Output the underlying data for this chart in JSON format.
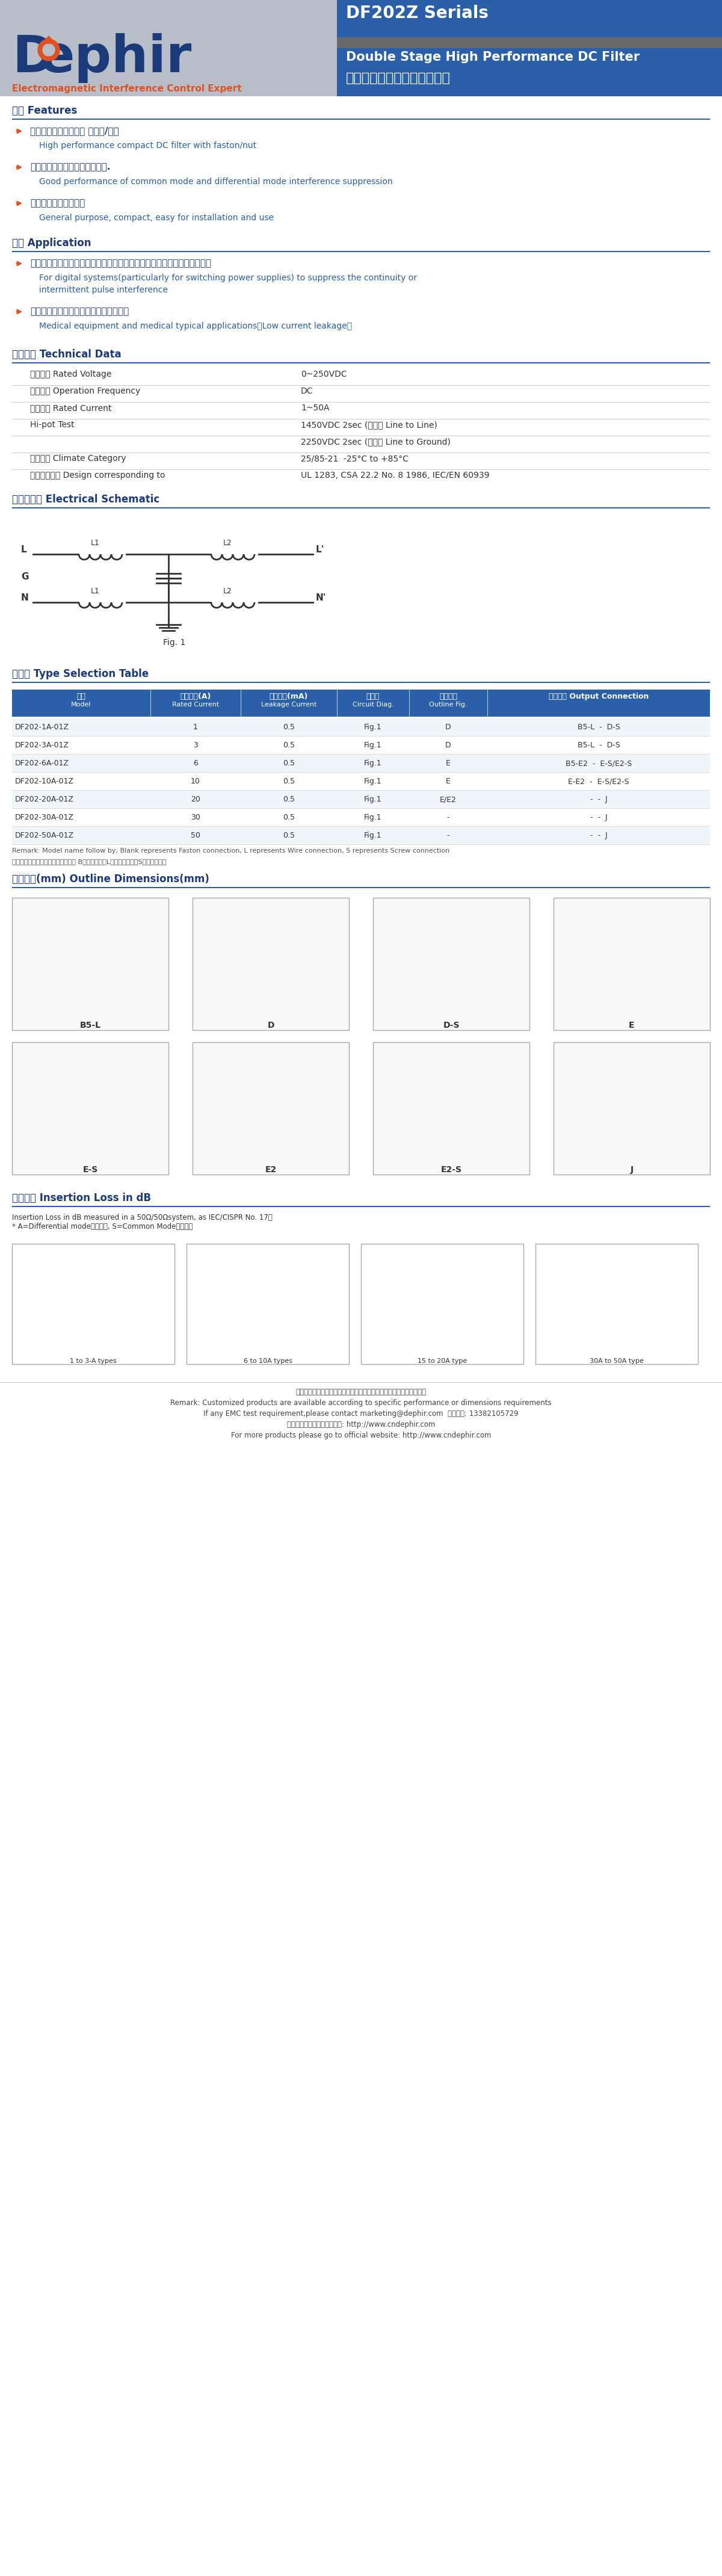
{
  "title_series": "DF202Z Serials",
  "title_product_en": "Double Stage High Performance DC Filter",
  "title_product_cn": "双级高性能型直流电源滤波器",
  "brand": "Dephir",
  "brand_sub": "Electromagnetic Interference Control Expert",
  "header_bg_color": "#3060a0",
  "header_gray_color": "#808080",
  "logo_blue": "#1a3a7a",
  "logo_orange": "#e05020",
  "logo_bg": "#c8c8c8",
  "section_line_color": "#2050a0",
  "features_title": "特点 Features",
  "features": [
    {
      "cn": "高性能双极直流滤波器 嵌入式/螺母",
      "en": "High performance compact DC filter with faston/nut"
    },
    {
      "cn": "良好的共模和差模干扰抑制特性.",
      "en": "Good performance of common mode and differential mode interference suppression"
    },
    {
      "cn": "通用、小巧、方便安装",
      "en": "General purpose, compact, easy for installation and use"
    }
  ],
  "application_title": "应用 Application",
  "applications": [
    {
      "cn": "用于大多数数字设备（尤其是开关电源）可用来抑制连续或间歇性脉冲干扰",
      "en": "For digital systems(particularly for switching power supplies) to suppress the continuity or\nintermittent pulse interference"
    },
    {
      "cn": "医疗设备及医疗特别应用（低泄漏电流）",
      "en": "Medical equipment and medical typical applications（Low current leakage）"
    }
  ],
  "tech_title": "技术参数 Technical Data",
  "tech_data": [
    [
      "额定电压 Rated Voltage",
      "0~250VDC"
    ],
    [
      "工作频率 Operation Frequency",
      "DC"
    ],
    [
      "额定电流 Rated Current",
      "1~50A"
    ],
    [
      "Hi-pot Test",
      "1450VDC 2sec (线对线 Line to Line)"
    ],
    [
      "",
      "2250VDC 2sec (线对地 Line to Ground)"
    ],
    [
      "气候类别 Climate Category",
      "25/85-21  -25°C to +85°C"
    ],
    [
      "设计参考标准 Design corresponding to",
      "UL 1283, CSA 22.2 No. 8 1986, IEC/EN 60939"
    ]
  ],
  "schematic_title": "电路原理图 Electrical Schematic",
  "selection_title": "选型表 Type Selection Table",
  "selection_headers": [
    "型号\nModel",
    "额定电流(A)\nRated Current",
    "泄漏电流(mA)\nLeakage Current",
    "电路图\nCircuit Diag.",
    "外形尺寸\nOutline Fig.",
    "输出接口 Output Connection"
  ],
  "selection_rows": [
    [
      "DF202-1A-01Z",
      "1",
      "0.5",
      "Fig.1",
      "D",
      "B5-L",
      "-",
      "D-S"
    ],
    [
      "DF202-3A-01Z",
      "3",
      "0.5",
      "Fig.1",
      "D",
      "B5-L",
      "-",
      "D-S"
    ],
    [
      "DF202-6A-01Z",
      "6",
      "0.5",
      "Fig.1",
      "E",
      "B5-E2",
      "-",
      "E-S/E2-S"
    ],
    [
      "DF202-10A-01Z",
      "10",
      "0.5",
      "Fig.1",
      "E",
      "E-E2",
      "-",
      "E-S/E2-S"
    ],
    [
      "DF202-20A-01Z",
      "20",
      "0.5",
      "Fig.1",
      "E/E2",
      "-",
      "-",
      "J"
    ],
    [
      "DF202-30A-01Z",
      "30",
      "0.5",
      "Fig.1",
      "-",
      "-",
      "-",
      "J"
    ],
    [
      "DF202-50A-01Z",
      "50",
      "0.5",
      "Fig.1",
      "-",
      "-",
      "-",
      "J"
    ]
  ],
  "outline_title": "外形尺嫸(mm) Outline Dimensions(mm)",
  "insertion_title": "插入损耗 Insertion Loss in dB",
  "insertion_note": "Insertion Loss in dB measured in a 50Ω/50Ωsystem, as IEC/CISPR No. 17）\n* A=Differential mode（差模）, S=Common Mode（共模）",
  "footer_note_cn": "注：以上均为公司标准产品，可根据客户特殊性能要求或尺寸要求定制",
  "footer_note_en1": "Remark: Customized products are available according to specific performance or dimensions requirements",
  "footer_note_en2": "If any EMC test requirement,please contact marketing@dephir.com  联系电话: 13382105729",
  "footer_website_cn": "更多产品请登录公司官方网站: http://www.cndephir.com",
  "footer_website_en": "For more products please go to official website: http://www.cndephir.com"
}
